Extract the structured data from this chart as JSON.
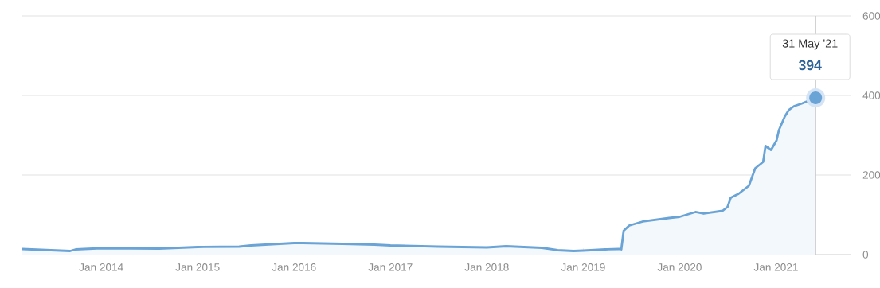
{
  "chart_data": {
    "type": "area",
    "x": [
      "2013-03-08",
      "2013-09-05",
      "2013-09-26",
      "2014-01-01",
      "2014-08-08",
      "2015-01-01",
      "2015-06-07",
      "2015-07-22",
      "2016-01-01",
      "2016-02-03",
      "2016-07-03",
      "2016-11-01",
      "2017-01-01",
      "2017-07-01",
      "2018-01-01",
      "2018-03-15",
      "2018-07-28",
      "2018-09-26",
      "2018-11-25",
      "2019-01-01",
      "2019-03-26",
      "2019-05-16",
      "2019-05-25",
      "2019-06-03",
      "2019-06-24",
      "2019-08-14",
      "2019-11-22",
      "2020-01-01",
      "2020-03-01",
      "2020-04-01",
      "2020-06-12",
      "2020-07-01",
      "2020-07-13",
      "2020-08-12",
      "2020-09-20",
      "2020-10-14",
      "2020-11-13",
      "2020-11-22",
      "2020-12-13",
      "2021-01-03",
      "2021-01-12",
      "2021-02-03",
      "2021-02-18",
      "2021-03-10",
      "2021-04-10",
      "2021-05-31"
    ],
    "series": [
      {
        "color": "#6aa3d5",
        "values": [
          14,
          9,
          13,
          16,
          15,
          19,
          20,
          23,
          29,
          29,
          27,
          25,
          23,
          20,
          18,
          21,
          17,
          11,
          9,
          10,
          13,
          14,
          13,
          60,
          73,
          83,
          92,
          95,
          107,
          103,
          110,
          120,
          143,
          153,
          173,
          217,
          233,
          273,
          263,
          287,
          313,
          347,
          363,
          373,
          380,
          394
        ]
      }
    ],
    "xlim": [
      "2013-03-08",
      "2021-10-10"
    ],
    "xticks": [
      {
        "value": "2014-01",
        "label": "Jan 2014"
      },
      {
        "value": "2015-01",
        "label": "Jan 2015"
      },
      {
        "value": "2016-01",
        "label": "Jan 2016"
      },
      {
        "value": "2017-01",
        "label": "Jan 2017"
      },
      {
        "value": "2018-01",
        "label": "Jan 2018"
      },
      {
        "value": "2019-01",
        "label": "Jan 2019"
      },
      {
        "value": "2020-01",
        "label": "Jan 2020"
      },
      {
        "value": "2021-01",
        "label": "Jan 2021"
      }
    ],
    "ylim": [
      0,
      600
    ],
    "yticks": [
      0,
      200,
      400,
      600
    ],
    "grid": "y",
    "marker": "none",
    "ref_lines": [
      {
        "axis": "x",
        "value": "2021-05-31",
        "color": "#c8c8c8"
      }
    ],
    "annotations": [
      "31 May '21",
      {
        "text": "394",
        "x": "2021-05-31",
        "y": 394
      }
    ]
  }
}
